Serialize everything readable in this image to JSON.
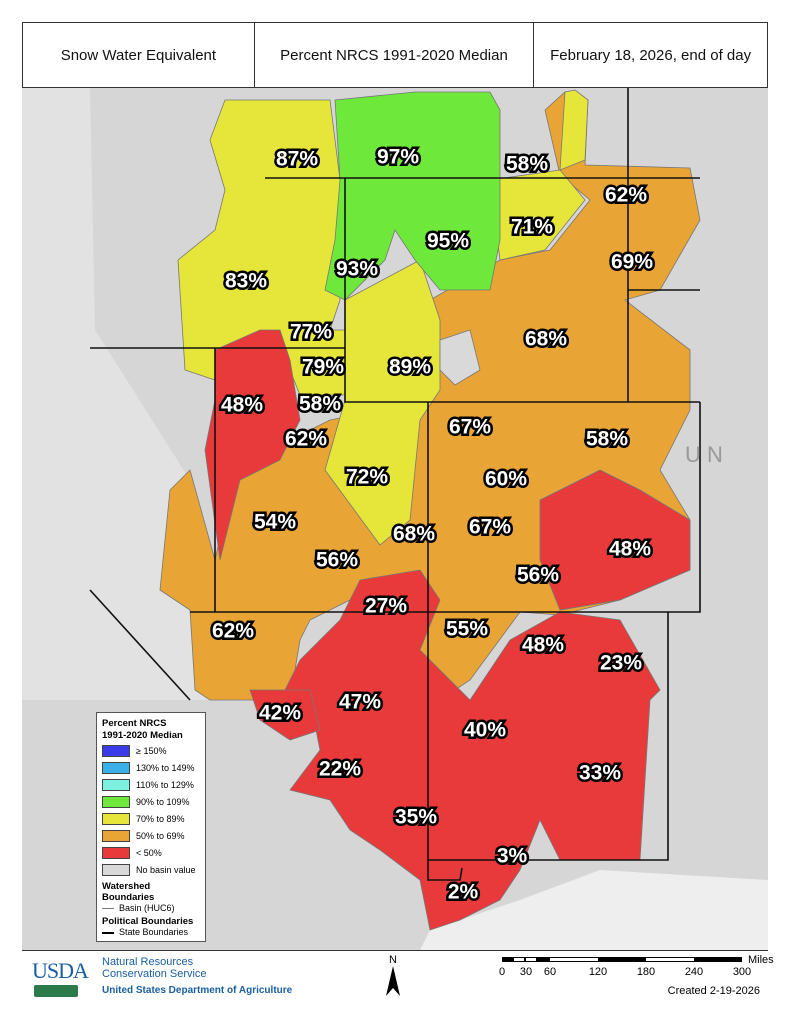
{
  "header": {
    "variable": "Snow Water Equivalent",
    "measure": "Percent NRCS 1991-2020 Median",
    "date": "February 18, 2026, end of day"
  },
  "colors": {
    "ge150": "#3a3ae8",
    "c130": "#3ab0e8",
    "c110": "#7ef0e0",
    "c90": "#6ee83a",
    "c70": "#e6e63a",
    "c50": "#e8a435",
    "lt50": "#e83a3a",
    "none": "#d9d9d9"
  },
  "basins": [
    {
      "value": "87%",
      "cat": "c70"
    },
    {
      "value": "97%",
      "cat": "c90"
    },
    {
      "value": "58%",
      "cat": "c50"
    },
    {
      "value": "62%",
      "cat": "c50"
    },
    {
      "value": "71%",
      "cat": "c70"
    },
    {
      "value": "95%",
      "cat": "c90"
    },
    {
      "value": "69%",
      "cat": "c50"
    },
    {
      "value": "83%",
      "cat": "c70"
    },
    {
      "value": "93%",
      "cat": "c90"
    },
    {
      "value": "68%",
      "cat": "c50"
    },
    {
      "value": "77%",
      "cat": "c70"
    },
    {
      "value": "79%",
      "cat": "c70"
    },
    {
      "value": "89%",
      "cat": "c70"
    },
    {
      "value": "48%",
      "cat": "lt50"
    },
    {
      "value": "58%",
      "cat": "c50"
    },
    {
      "value": "62%",
      "cat": "c50"
    },
    {
      "value": "67%",
      "cat": "c50"
    },
    {
      "value": "58%",
      "cat": "c50"
    },
    {
      "value": "72%",
      "cat": "c70"
    },
    {
      "value": "60%",
      "cat": "c50"
    },
    {
      "value": "54%",
      "cat": "c50"
    },
    {
      "value": "67%",
      "cat": "c50"
    },
    {
      "value": "68%",
      "cat": "c50"
    },
    {
      "value": "48%",
      "cat": "lt50"
    },
    {
      "value": "56%",
      "cat": "c50"
    },
    {
      "value": "56%",
      "cat": "c50"
    },
    {
      "value": "27%",
      "cat": "lt50"
    },
    {
      "value": "55%",
      "cat": "c50"
    },
    {
      "value": "62%",
      "cat": "c50"
    },
    {
      "value": "48%",
      "cat": "lt50"
    },
    {
      "value": "23%",
      "cat": "lt50"
    },
    {
      "value": "42%",
      "cat": "lt50"
    },
    {
      "value": "47%",
      "cat": "lt50"
    },
    {
      "value": "40%",
      "cat": "lt50"
    },
    {
      "value": "22%",
      "cat": "lt50"
    },
    {
      "value": "33%",
      "cat": "lt50"
    },
    {
      "value": "35%",
      "cat": "lt50"
    },
    {
      "value": "3%",
      "cat": "lt50"
    },
    {
      "value": "2%",
      "cat": "lt50"
    }
  ],
  "legend": {
    "title1": "Percent NRCS",
    "title2": "1991-2020 Median",
    "items": [
      {
        "label": "≥ 150%",
        "cat": "ge150"
      },
      {
        "label": "130% to 149%",
        "cat": "c130"
      },
      {
        "label": "110% to 129%",
        "cat": "c110"
      },
      {
        "label": "90% to 109%",
        "cat": "c90"
      },
      {
        "label": "70% to 89%",
        "cat": "c70"
      },
      {
        "label": "50% to 69%",
        "cat": "c50"
      },
      {
        "label": "< 50%",
        "cat": "lt50"
      },
      {
        "label": "No basin value",
        "cat": "none"
      }
    ],
    "watershed_title": "Watershed Boundaries",
    "basin_label": "Basin (HUC6)",
    "political_title": "Political Boundaries",
    "state_label": "State Boundaries"
  },
  "map_text": {
    "state_fragment": "U N"
  },
  "footer": {
    "logo": "USDA",
    "agency1": "Natural Resources",
    "agency2": "Conservation Service",
    "dept": "United States Department of Agriculture",
    "north": "N",
    "scale_unit": "Miles",
    "scale_ticks": [
      "0",
      "30",
      "60",
      "120",
      "180",
      "240",
      "300"
    ],
    "created": "Created 2-19-2026"
  }
}
